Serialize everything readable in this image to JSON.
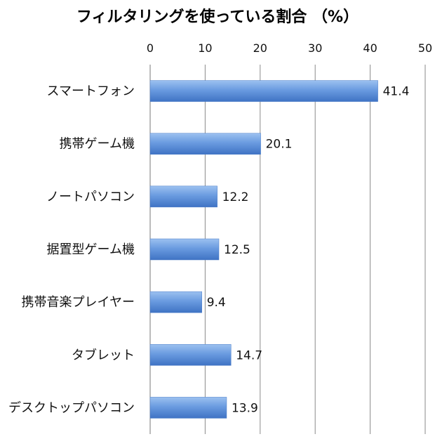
{
  "chart_data": {
    "type": "bar",
    "orientation": "horizontal",
    "title": "フィルタリングを使っている割合 （%）",
    "categories": [
      "スマートフォン",
      "携帯ゲーム機",
      "ノートパソコン",
      "据置型ゲーム機",
      "携帯音楽プレイヤー",
      "タブレット",
      "デスクトップパソコン"
    ],
    "values": [
      41.4,
      20.1,
      12.2,
      12.5,
      9.4,
      14.7,
      13.9
    ],
    "xlim": [
      0,
      50
    ],
    "x_ticks": [
      0,
      10,
      20,
      30,
      40,
      50
    ],
    "x_axis_position": "top",
    "grid": true,
    "bar_color": "#5b8fd6",
    "data_labels": true,
    "legend": "none"
  }
}
